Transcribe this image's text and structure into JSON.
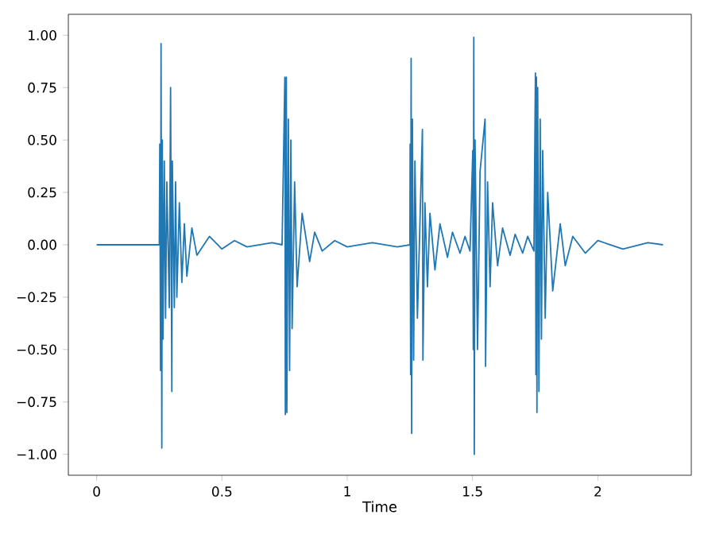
{
  "chart_data": {
    "type": "line",
    "xlabel": "Time",
    "color": "#1f77b4",
    "xlim": [
      -0.113,
      2.373
    ],
    "ylim": [
      -1.1,
      1.1
    ],
    "xticks": [
      0,
      0.5,
      1,
      1.5,
      2
    ],
    "yticks": [
      {
        "value": -1,
        "label": "−1.00"
      },
      {
        "value": -0.75,
        "label": "−0.75"
      },
      {
        "value": -0.5,
        "label": "−0.50"
      },
      {
        "value": -0.25,
        "label": "−0.25"
      },
      {
        "value": 0,
        "label": "0.00"
      },
      {
        "value": 0.25,
        "label": "0.25"
      },
      {
        "value": 0.5,
        "label": "0.50"
      },
      {
        "value": 0.75,
        "label": "0.75"
      },
      {
        "value": 1,
        "label": "1.00"
      }
    ],
    "grid": false,
    "marker": "none",
    "line_style": "solid",
    "x": [
      0,
      0.25,
      0.252,
      0.255,
      0.257,
      0.26,
      0.262,
      0.265,
      0.27,
      0.275,
      0.28,
      0.29,
      0.295,
      0.3,
      0.302,
      0.31,
      0.315,
      0.32,
      0.33,
      0.34,
      0.35,
      0.36,
      0.38,
      0.4,
      0.45,
      0.5,
      0.55,
      0.6,
      0.7,
      0.74,
      0.751,
      0.753,
      0.757,
      0.759,
      0.765,
      0.77,
      0.775,
      0.78,
      0.79,
      0.8,
      0.82,
      0.85,
      0.87,
      0.9,
      0.95,
      1.0,
      1.1,
      1.2,
      1.25,
      1.251,
      1.253,
      1.255,
      1.257,
      1.26,
      1.265,
      1.27,
      1.28,
      1.3,
      1.302,
      1.31,
      1.32,
      1.33,
      1.35,
      1.37,
      1.4,
      1.42,
      1.45,
      1.47,
      1.49,
      1.501,
      1.503,
      1.505,
      1.507,
      1.51,
      1.52,
      1.53,
      1.55,
      1.552,
      1.56,
      1.57,
      1.58,
      1.6,
      1.62,
      1.65,
      1.67,
      1.7,
      1.72,
      1.745,
      1.751,
      1.753,
      1.755,
      1.757,
      1.76,
      1.765,
      1.77,
      1.775,
      1.78,
      1.79,
      1.8,
      1.82,
      1.85,
      1.87,
      1.9,
      1.95,
      2.0,
      2.1,
      2.2,
      2.26
    ],
    "values": [
      0,
      0,
      0.48,
      -0.6,
      0.96,
      -0.97,
      0.5,
      -0.45,
      0.4,
      -0.35,
      0.3,
      -0.3,
      0.75,
      -0.7,
      0.4,
      -0.3,
      0.3,
      -0.25,
      0.2,
      -0.18,
      0.1,
      -0.15,
      0.08,
      -0.05,
      0.04,
      -0.02,
      0.02,
      -0.01,
      0.01,
      0,
      0.8,
      -0.81,
      0.8,
      -0.8,
      0.6,
      -0.6,
      0.5,
      -0.4,
      0.3,
      -0.2,
      0.15,
      -0.08,
      0.06,
      -0.03,
      0.02,
      -0.01,
      0.01,
      -0.01,
      0,
      0.48,
      -0.62,
      0.89,
      -0.9,
      0.6,
      -0.55,
      0.4,
      -0.35,
      0.55,
      -0.55,
      0.2,
      -0.2,
      0.15,
      -0.12,
      0.1,
      -0.06,
      0.06,
      -0.04,
      0.04,
      -0.03,
      0.45,
      -0.5,
      0.99,
      -1.0,
      0.5,
      -0.5,
      0.35,
      0.6,
      -0.58,
      0.3,
      -0.2,
      0.2,
      -0.1,
      0.08,
      -0.05,
      0.05,
      -0.04,
      0.04,
      -0.03,
      0.82,
      -0.62,
      0.8,
      -0.8,
      0.75,
      -0.7,
      0.6,
      -0.45,
      0.45,
      -0.35,
      0.25,
      -0.22,
      0.1,
      -0.1,
      0.04,
      -0.04,
      0.02,
      -0.02,
      0.01,
      0
    ]
  }
}
